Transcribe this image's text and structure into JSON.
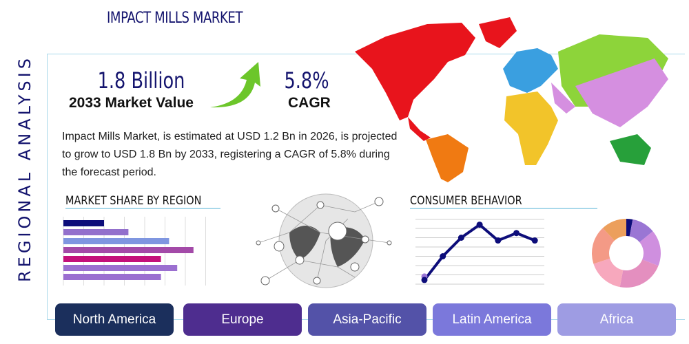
{
  "header": {
    "title": "IMPACT MILLS MARKET",
    "side_label": "REGIONAL ANALYSIS"
  },
  "stats": {
    "market_value": "1.8 Billion",
    "market_value_label": "2033 Market Value",
    "cagr": "5.8%",
    "cagr_label": "CAGR"
  },
  "description": "Impact Mills Market, is estimated at USD 1.2 Bn in 2026, is projected to grow to USD 1.8 Bn by 2033, registering a CAGR of 5.8% during the forecast period.",
  "sections": {
    "market_share": "MARKET SHARE BY REGION",
    "consumer": "CONSUMER BEHAVIOR"
  },
  "regions": [
    {
      "label": "North America",
      "color": "#1b2f5c"
    },
    {
      "label": "Europe",
      "color": "#4e2d8f"
    },
    {
      "label": "Asia-Pacific",
      "color": "#5352a8"
    },
    {
      "label": "Latin America",
      "color": "#7b78db"
    },
    {
      "label": "Africa",
      "color": "#9e9ce3"
    }
  ],
  "chart_data": [
    {
      "type": "bar",
      "orientation": "horizontal",
      "values": [
        2.0,
        3.2,
        5.2,
        6.4,
        4.8,
        5.6,
        4.8
      ],
      "colors": [
        "#0d0d7a",
        "#9370cc",
        "#7f96e0",
        "#a34aa8",
        "#c4107a",
        "#9b6fd0",
        "#9b6fd0"
      ],
      "xlim": [
        0,
        7
      ],
      "grid": true
    },
    {
      "type": "line",
      "values": [
        0.45,
        3,
        5,
        6.4,
        4.7,
        5.5,
        4.7
      ],
      "ylim": [
        0,
        7
      ],
      "color": "#0d0d7a",
      "grid": true
    },
    {
      "type": "pie",
      "donut": true,
      "values": [
        3,
        11,
        17,
        22,
        17,
        18,
        12
      ],
      "colors": [
        "#0d0d7a",
        "#9a76d4",
        "#cf8fdf",
        "#e48fbf",
        "#f7a8bd",
        "#f49a86",
        "#ec9f5c"
      ]
    }
  ]
}
